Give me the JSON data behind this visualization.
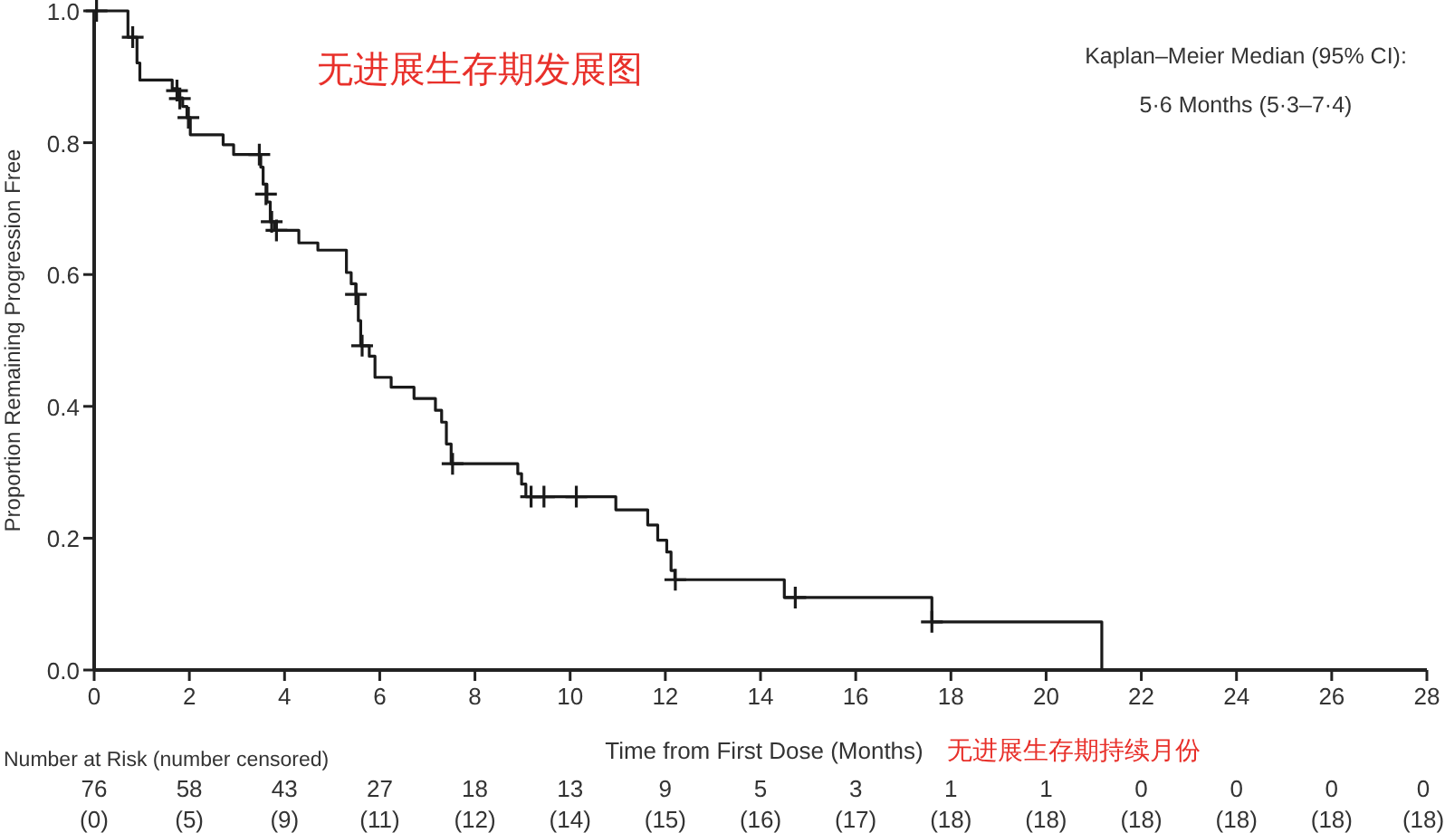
{
  "chart_data": {
    "type": "step",
    "title": "无进展生存期发展图",
    "xlabel": "Time from First Dose (Months)",
    "ylabel": "Proportion Remaining Progression Free",
    "xlim": [
      0,
      28
    ],
    "xticks": [
      0,
      2,
      4,
      6,
      8,
      10,
      12,
      14,
      16,
      18,
      20,
      22,
      24,
      26,
      28
    ],
    "ylim": [
      0,
      1
    ],
    "yticks": [
      {
        "value": 0,
        "label": "0.0"
      },
      {
        "value": 0.2,
        "label": "0.2"
      },
      {
        "value": 0.4,
        "label": "0.4"
      },
      {
        "value": 0.6,
        "label": "0.6"
      },
      {
        "value": 0.8,
        "label": "0.8"
      },
      {
        "value": 1,
        "label": "1.0"
      }
    ],
    "series": [
      {
        "color": "#1a1a1a",
        "x": [
          0,
          0.71,
          0.9,
          0.96,
          1.64,
          1.76,
          1.86,
          1.95,
          2.02,
          2.71,
          2.93,
          3.5,
          3.55,
          3.63,
          3.7,
          3.79,
          4.3,
          4.7,
          5.3,
          5.4,
          5.5,
          5.55,
          5.6,
          5.78,
          5.9,
          6.24,
          6.72,
          7.17,
          7.3,
          7.4,
          7.5,
          8.9,
          8.98,
          9.07,
          10.96,
          11.63,
          11.84,
          12.03,
          12.12,
          12.2,
          14.5,
          17.6,
          21.17
        ],
        "values": [
          1.0,
          0.96,
          0.921,
          0.895,
          0.882,
          0.868,
          0.855,
          0.838,
          0.812,
          0.797,
          0.782,
          0.763,
          0.737,
          0.71,
          0.68,
          0.667,
          0.648,
          0.637,
          0.603,
          0.586,
          0.57,
          0.53,
          0.492,
          0.476,
          0.444,
          0.429,
          0.412,
          0.394,
          0.376,
          0.343,
          0.313,
          0.298,
          0.282,
          0.263,
          0.243,
          0.22,
          0.197,
          0.179,
          0.151,
          0.137,
          0.11,
          0.073,
          0.0
        ]
      },
      {
        "type": "scatter",
        "marker": "cross",
        "color": "#1a1a1a",
        "x": [
          0.05,
          0.81,
          1.74,
          1.8,
          1.98,
          3.47,
          3.61,
          3.73,
          3.83,
          5.5,
          5.63,
          7.53,
          9.18,
          9.45,
          10.13,
          12.21,
          14.73,
          17.6
        ],
        "values": [
          1.0,
          0.96,
          0.879,
          0.867,
          0.838,
          0.782,
          0.722,
          0.68,
          0.667,
          0.57,
          0.492,
          0.313,
          0.263,
          0.263,
          0.263,
          0.137,
          0.11,
          0.073
        ]
      }
    ],
    "annotations": [
      "Kaplan–Meier Median (95% CI):",
      "5·6 Months (5·3–7·4)",
      "无进展生存期持续月份",
      "Number at Risk (number censored)",
      "76",
      "58",
      "43",
      "27",
      "18",
      "13",
      "9",
      "5",
      "3",
      "1",
      "1",
      "0",
      "0",
      "0",
      "0",
      "(0)",
      "(5)",
      "(9)",
      "(11)",
      "(12)",
      "(14)",
      "(15)",
      "(16)",
      "(17)",
      "(18)",
      "(18)",
      "(18)",
      "(18)",
      "(18)",
      "(18)"
    ]
  }
}
